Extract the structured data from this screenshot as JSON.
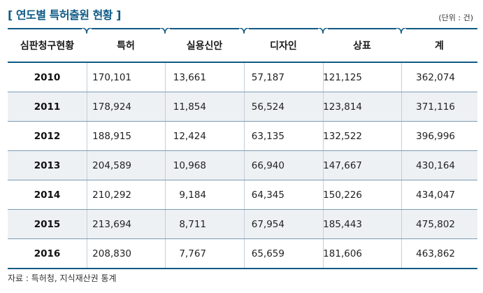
{
  "title": "[ 연도별 특허출원 현황 ]",
  "unit": "(단위 : 건)",
  "columns": [
    "심판청구현황",
    "특허",
    "실용신안",
    "디자인",
    "상표",
    "계"
  ],
  "rows": [
    [
      "2010",
      "170,101",
      "13,661",
      "57,187",
      "121,125",
      "362,074"
    ],
    [
      "2011",
      "178,924",
      "11,854",
      "56,524",
      "123,814",
      "371,116"
    ],
    [
      "2012",
      "188,915",
      "12,424",
      "63,135",
      "132,522",
      "396,996"
    ],
    [
      "2013",
      "204,589",
      "10,968",
      "66,940",
      "147,667",
      "430,164"
    ],
    [
      "2014",
      "210,292",
      "9,184",
      "64,345",
      "150,226",
      "434,047"
    ],
    [
      "2015",
      "213,694",
      "8,711",
      "67,954",
      "185,443",
      "475,802"
    ],
    [
      "2016",
      "208,830",
      "7,767",
      "65,659",
      "181,606",
      "463,862"
    ]
  ],
  "source": "자료 : 특허청, 지식재산권 통계"
}
